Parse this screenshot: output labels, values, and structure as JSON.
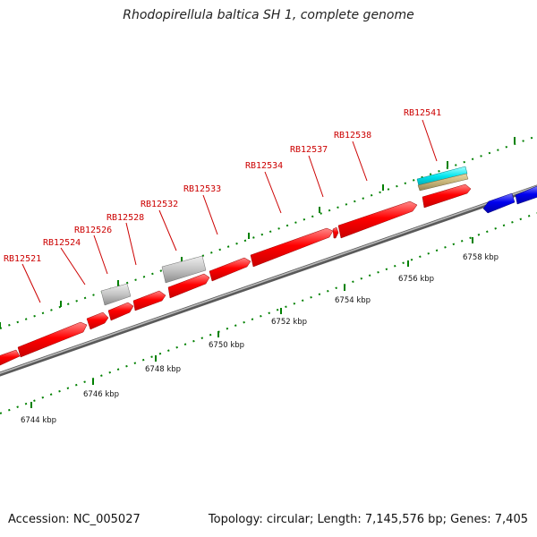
{
  "title": "Rhodopirellula baltica SH 1, complete genome",
  "footer": {
    "accession": "Accession: NC_005027",
    "stats": "Topology: circular; Length: 7,145,576 bp; Genes: 7,405"
  },
  "colors": {
    "forward_gene": "#ff0000",
    "reverse_gene": "#0000ee",
    "rna_gene": "#c0c0c0",
    "cyan_feature": "#00e5ee",
    "tan_feature": "#c8b478",
    "backbone": "#808080",
    "tick": "#008000",
    "label": "#cc0000"
  },
  "gene_labels": [
    "RB12521",
    "RB12524",
    "RB12526",
    "RB12528",
    "RB12532",
    "RB12533",
    "RB12534",
    "RB12537",
    "RB12538",
    "RB12541"
  ],
  "kbp_labels": [
    "6744 kbp",
    "6746 kbp",
    "6748 kbp",
    "6750 kbp",
    "6752 kbp",
    "6754 kbp",
    "6756 kbp",
    "6758 kbp"
  ]
}
